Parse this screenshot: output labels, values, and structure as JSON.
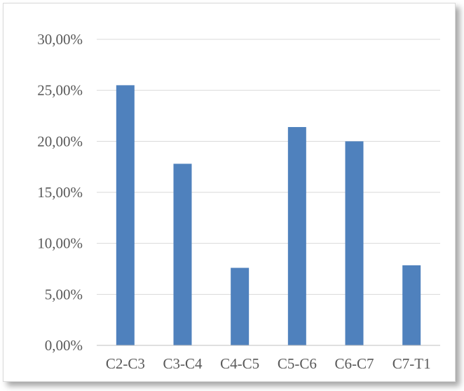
{
  "chart_data": {
    "type": "bar",
    "title": "",
    "xlabel": "",
    "ylabel": "",
    "categories": [
      "C2-C3",
      "C3-C4",
      "C4-C5",
      "C5-C6",
      "C6-C7",
      "C7-T1"
    ],
    "values": [
      25.5,
      17.8,
      7.6,
      21.4,
      20.0,
      7.85
    ],
    "ylim": [
      0,
      30
    ],
    "yticks": [
      0,
      5,
      10,
      15,
      20,
      25,
      30
    ],
    "ytick_labels": [
      "0,00%",
      "5,00%",
      "10,00%",
      "15,00%",
      "20,00%",
      "25,00%",
      "30,00%"
    ],
    "grid": true,
    "legend": "none",
    "colors": {
      "bar": "#4f81bd",
      "grid": "#d9d9d9",
      "axis": "#bfbfbf",
      "text": "#595959"
    }
  }
}
